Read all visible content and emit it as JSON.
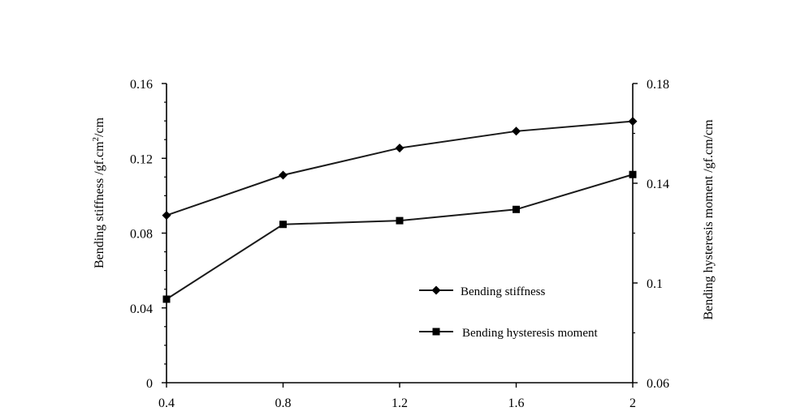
{
  "chart_data": {
    "type": "line",
    "title": "",
    "xlabel": "",
    "x": [
      0.4,
      0.8,
      1.2,
      1.6,
      2
    ],
    "x_tick_labels": [
      "0.4",
      "0.8",
      "1.2",
      "1.6",
      "2"
    ],
    "xlim": [
      0.4,
      2
    ],
    "y_left": {
      "label_main": "Bending stiffness  /gf.cm",
      "label_sup": "2",
      "label_tail": "/cm",
      "lim": [
        0,
        0.16
      ],
      "ticks": [
        0,
        0.04,
        0.08,
        0.12,
        0.16
      ],
      "tick_labels": [
        "0",
        "0.04",
        "0.08",
        "0.12",
        "0.16"
      ]
    },
    "y_right": {
      "label": "Bending hysteresis moment  /gf.cm/cm",
      "lim": [
        0.06,
        0.18
      ],
      "ticks": [
        0.06,
        0.1,
        0.14,
        0.18
      ],
      "tick_labels": [
        "0.06",
        "0.1",
        "0.14",
        "0.18"
      ]
    },
    "series": [
      {
        "name": "Bending stiffness",
        "axis": "left",
        "marker": "diamond",
        "values": [
          0.0895,
          0.111,
          0.1255,
          0.1345,
          0.1398
        ]
      },
      {
        "name": "Bending hysteresis moment",
        "axis": "right",
        "marker": "square",
        "values": [
          0.0935,
          0.1235,
          0.125,
          0.1295,
          0.1435
        ]
      }
    ],
    "legend_position": "bottom-right",
    "grid": false,
    "colors": {
      "line": "#1a1a1a",
      "axis": "#000000"
    }
  }
}
